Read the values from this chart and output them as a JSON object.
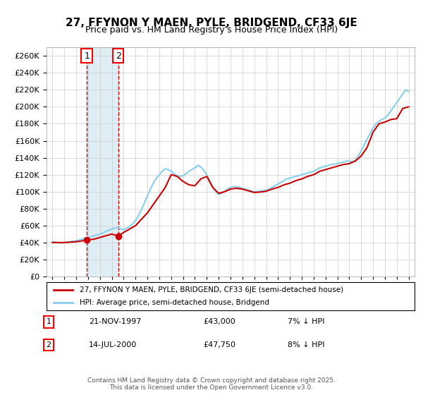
{
  "title": "27, FFYNON Y MAEN, PYLE, BRIDGEND, CF33 6JE",
  "subtitle": "Price paid vs. HM Land Registry's House Price Index (HPI)",
  "sale1_date": 1997.896,
  "sale1_price": 43000,
  "sale1_label": "1",
  "sale2_date": 2000.536,
  "sale2_price": 47750,
  "sale2_label": "2",
  "y_min": 0,
  "y_max": 270000,
  "y_tick_step": 20000,
  "x_min": 1994.5,
  "x_max": 2025.5,
  "hpi_color": "#87CEEB",
  "price_color": "#CC0000",
  "shade_color": "#D0E8F0",
  "grid_color": "#CCCCCC",
  "bg_color": "#FFFFFF",
  "legend_price_label": "27, FFYNON Y MAEN, PYLE, BRIDGEND, CF33 6JE (semi-detached house)",
  "legend_hpi_label": "HPI: Average price, semi-detached house, Bridgend",
  "annotation1_date": "21-NOV-1997",
  "annotation1_price": "£43,000",
  "annotation1_pct": "7% ↓ HPI",
  "annotation2_date": "14-JUL-2000",
  "annotation2_price": "£47,750",
  "annotation2_pct": "8% ↓ HPI",
  "footer": "Contains HM Land Registry data © Crown copyright and database right 2025.\nThis data is licensed under the Open Government Licence v3.0.",
  "hpi_data_x": [
    1995.0,
    1995.25,
    1995.5,
    1995.75,
    1996.0,
    1996.25,
    1996.5,
    1996.75,
    1997.0,
    1997.25,
    1997.5,
    1997.75,
    1998.0,
    1998.25,
    1998.5,
    1998.75,
    1999.0,
    1999.25,
    1999.5,
    1999.75,
    2000.0,
    2000.25,
    2000.5,
    2000.75,
    2001.0,
    2001.25,
    2001.5,
    2001.75,
    2002.0,
    2002.25,
    2002.5,
    2002.75,
    2003.0,
    2003.25,
    2003.5,
    2003.75,
    2004.0,
    2004.25,
    2004.5,
    2004.75,
    2005.0,
    2005.25,
    2005.5,
    2005.75,
    2006.0,
    2006.25,
    2006.5,
    2006.75,
    2007.0,
    2007.25,
    2007.5,
    2007.75,
    2008.0,
    2008.25,
    2008.5,
    2008.75,
    2009.0,
    2009.25,
    2009.5,
    2009.75,
    2010.0,
    2010.25,
    2010.5,
    2010.75,
    2011.0,
    2011.25,
    2011.5,
    2011.75,
    2012.0,
    2012.25,
    2012.5,
    2012.75,
    2013.0,
    2013.25,
    2013.5,
    2013.75,
    2014.0,
    2014.25,
    2014.5,
    2014.75,
    2015.0,
    2015.25,
    2015.5,
    2015.75,
    2016.0,
    2016.25,
    2016.5,
    2016.75,
    2017.0,
    2017.25,
    2017.5,
    2017.75,
    2018.0,
    2018.25,
    2018.5,
    2018.75,
    2019.0,
    2019.25,
    2019.5,
    2019.75,
    2020.0,
    2020.25,
    2020.5,
    2020.75,
    2021.0,
    2021.25,
    2021.5,
    2021.75,
    2022.0,
    2022.25,
    2022.5,
    2022.75,
    2023.0,
    2023.25,
    2023.5,
    2023.75,
    2024.0,
    2024.25,
    2024.5,
    2024.75,
    2025.0
  ],
  "hpi_data_y": [
    41000,
    40500,
    40000,
    39500,
    40000,
    40500,
    41000,
    41500,
    42000,
    43000,
    44000,
    45000,
    46000,
    47000,
    48000,
    49000,
    50000,
    51500,
    53000,
    54500,
    56000,
    57000,
    58000,
    56000,
    55000,
    57000,
    59000,
    62000,
    66000,
    72000,
    79000,
    87000,
    95000,
    103000,
    110000,
    116000,
    120000,
    124000,
    127000,
    126000,
    124000,
    121000,
    119000,
    118000,
    119000,
    121000,
    124000,
    126000,
    128000,
    131000,
    129000,
    125000,
    120000,
    113000,
    106000,
    100000,
    97000,
    98000,
    100000,
    103000,
    105000,
    106000,
    106000,
    105000,
    104000,
    103000,
    102000,
    101000,
    100000,
    100000,
    100500,
    101000,
    102000,
    103000,
    105000,
    107000,
    109000,
    111000,
    113000,
    115000,
    116000,
    117000,
    118000,
    119000,
    120000,
    121000,
    122000,
    123000,
    124000,
    126000,
    128000,
    129000,
    130000,
    131000,
    132000,
    132500,
    133000,
    134000,
    135000,
    136000,
    136000,
    135000,
    137000,
    142000,
    148000,
    155000,
    162000,
    168000,
    175000,
    180000,
    183000,
    185000,
    187000,
    190000,
    195000,
    200000,
    205000,
    210000,
    215000,
    220000,
    218000
  ],
  "price_data_x": [
    1995.0,
    1995.5,
    1996.0,
    1996.5,
    1997.0,
    1997.5,
    1997.896,
    1998.5,
    1999.0,
    1999.5,
    2000.0,
    2000.536,
    2001.0,
    2002.0,
    2003.0,
    2004.0,
    2004.5,
    2005.0,
    2005.5,
    2006.0,
    2006.5,
    2007.0,
    2007.5,
    2008.0,
    2008.5,
    2009.0,
    2009.5,
    2010.0,
    2010.5,
    2011.0,
    2011.5,
    2012.0,
    2012.5,
    2013.0,
    2013.5,
    2014.0,
    2014.5,
    2015.0,
    2015.5,
    2016.0,
    2016.5,
    2017.0,
    2017.5,
    2018.0,
    2018.5,
    2019.0,
    2019.5,
    2020.0,
    2020.5,
    2021.0,
    2021.5,
    2022.0,
    2022.5,
    2023.0,
    2023.5,
    2024.0,
    2024.5,
    2025.0
  ],
  "price_data_y": [
    40000,
    40000,
    40000,
    40500,
    41000,
    42000,
    43000,
    44000,
    46000,
    48000,
    50000,
    47750,
    52000,
    60000,
    75000,
    95000,
    105000,
    120000,
    118000,
    112000,
    108000,
    107000,
    115000,
    118000,
    105000,
    98000,
    100000,
    103000,
    104000,
    103000,
    101000,
    99000,
    99500,
    100500,
    103000,
    105000,
    108000,
    110000,
    113000,
    115000,
    118000,
    120000,
    124000,
    126000,
    128000,
    130000,
    132000,
    133000,
    136000,
    142000,
    152000,
    170000,
    180000,
    182000,
    185000,
    186000,
    198000,
    200000
  ]
}
